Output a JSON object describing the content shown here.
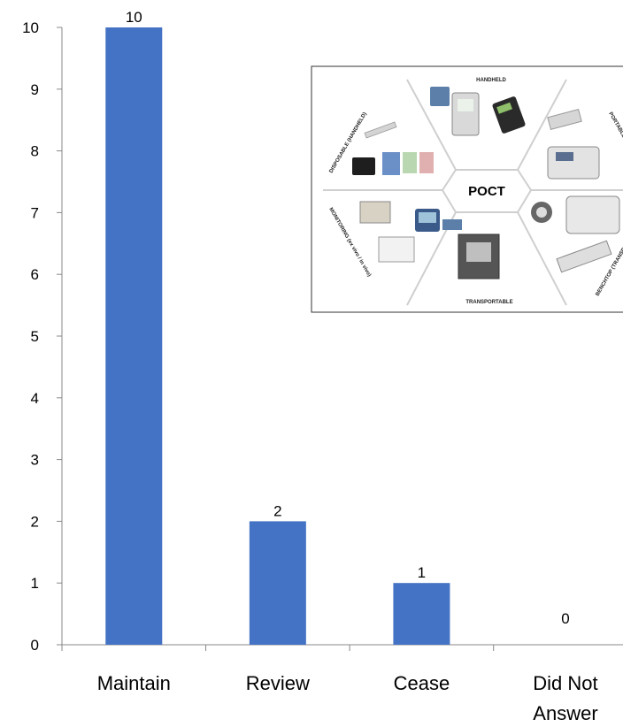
{
  "chart_data": {
    "type": "bar",
    "categories": [
      "Maintain",
      "Review",
      "Cease",
      "Did Not Answer"
    ],
    "category_lines": [
      [
        "Maintain"
      ],
      [
        "Review"
      ],
      [
        "Cease"
      ],
      [
        "Did Not",
        "Answer"
      ]
    ],
    "values": [
      10,
      2,
      1,
      0
    ],
    "data_labels": [
      "10",
      "2",
      "1",
      "0"
    ],
    "yticks": [
      0,
      1,
      2,
      3,
      4,
      5,
      6,
      7,
      8,
      9,
      10
    ],
    "ylim": [
      0,
      10
    ],
    "title": "",
    "xlabel": "",
    "ylabel": "",
    "grid": false,
    "bar_color": "#4472C4"
  },
  "inset_image": {
    "center_label": "POCT",
    "segment_labels": [
      "HANDHELD",
      "PORTABLE",
      "BENCHTOP (TRANSPORTABLE)",
      "TRANSPORTABLE",
      "MONITORING (ex vivo / in vivo)",
      "DISPOSABLE (HANDHELD)"
    ]
  }
}
